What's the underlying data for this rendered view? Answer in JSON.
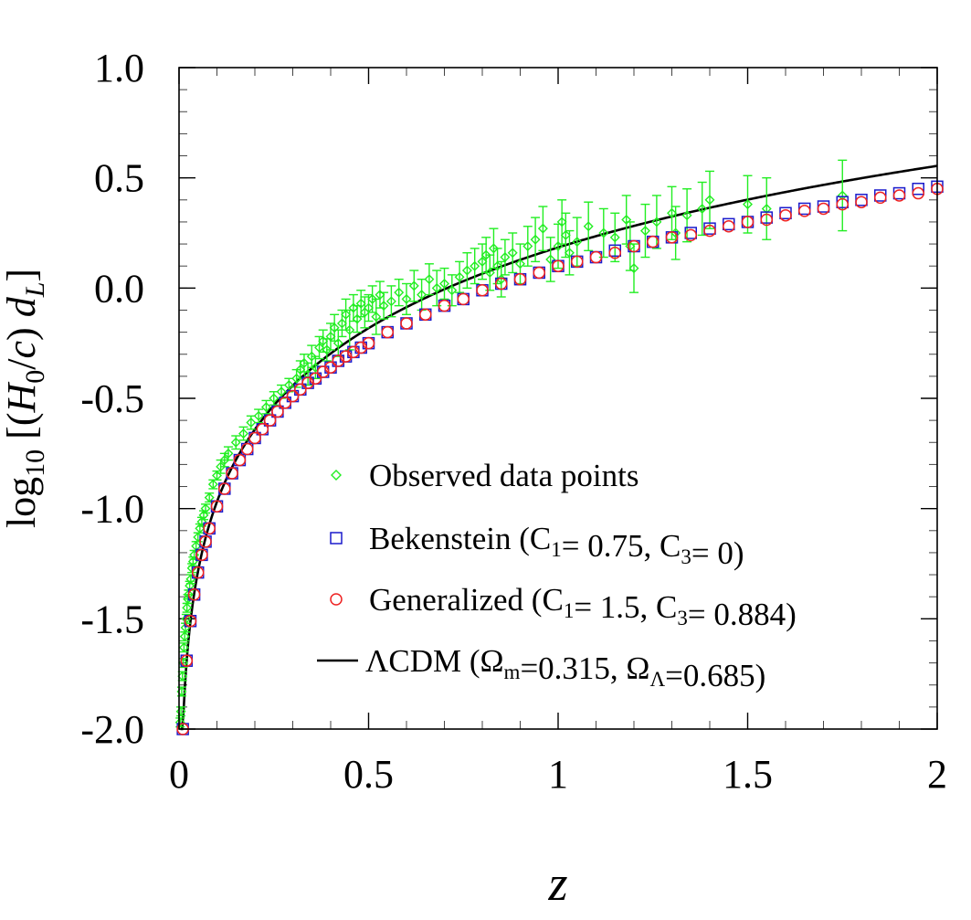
{
  "chart_data": {
    "type": "scatter",
    "title": "",
    "xlabel": "z",
    "ylabel": {
      "prefix": "log",
      "sub": "10",
      "open": " [(",
      "H": "H",
      "Hsub": "0",
      "mid": "/",
      "c": "c",
      "close1": ") ",
      "d": "d",
      "dsub": "L",
      "close2": "]"
    },
    "xlim": [
      0,
      2
    ],
    "ylim": [
      -2,
      1
    ],
    "xticks": [
      0,
      0.5,
      1,
      1.5,
      2
    ],
    "xtick_labels": [
      "0",
      "0.5",
      "1",
      "1.5",
      "2"
    ],
    "yticks": [
      1,
      0.5,
      0,
      -0.5,
      -1,
      -1.5,
      -2
    ],
    "ytick_labels": [
      "1.0",
      "0.5",
      "0.0",
      "-0.5",
      "-1.0",
      "-1.5",
      "-2.0"
    ],
    "legend": {
      "placement": "lower-right",
      "entries": [
        {
          "id": "observed",
          "marker": "diamond",
          "color": "#22ee22",
          "parts": [
            {
              "t": "Observed data points"
            }
          ]
        },
        {
          "id": "bekenstein",
          "marker": "square",
          "color": "#1a1acc",
          "parts": [
            {
              "t": "Bekenstein   (C"
            },
            {
              "t": "1",
              "sub": true
            },
            {
              "t": "= 0.75, C"
            },
            {
              "t": "3",
              "sub": true
            },
            {
              "t": "= 0)"
            }
          ]
        },
        {
          "id": "generalized",
          "marker": "circle",
          "color": "#ee2222",
          "parts": [
            {
              "t": "Generalized  (C"
            },
            {
              "t": "1",
              "sub": true
            },
            {
              "t": "= 1.5,   C"
            },
            {
              "t": "3",
              "sub": true
            },
            {
              "t": "= 0.884)"
            }
          ]
        },
        {
          "id": "lcdm",
          "marker": "line",
          "color": "#000000",
          "parts": [
            {
              "t": "ΛCDM  (Ω"
            },
            {
              "t": "m",
              "sub": true
            },
            {
              "t": "=0.315, Ω"
            },
            {
              "t": "Λ",
              "sub": true
            },
            {
              "t": "=0.685)"
            }
          ]
        }
      ]
    },
    "series": [
      {
        "name": "ΛCDM (Ωm=0.315, ΩΛ=0.685)",
        "type": "line",
        "color": "#000000",
        "model": {
          "H0c": "log10",
          "omega_m": 0.315,
          "omega_lambda": 0.685,
          "z_range": [
            0.0023,
            2.0
          ]
        }
      },
      {
        "name": "Bekenstein (C1= 0.75, C3= 0)",
        "marker": "square",
        "color": "#1a1acc",
        "z": [
          0.01,
          0.02,
          0.03,
          0.04,
          0.05,
          0.06,
          0.07,
          0.08,
          0.1,
          0.12,
          0.14,
          0.16,
          0.18,
          0.2,
          0.22,
          0.24,
          0.26,
          0.28,
          0.3,
          0.32,
          0.34,
          0.36,
          0.38,
          0.4,
          0.42,
          0.44,
          0.46,
          0.48,
          0.5,
          0.55,
          0.6,
          0.65,
          0.7,
          0.75,
          0.8,
          0.85,
          0.9,
          0.95,
          1.0,
          1.05,
          1.1,
          1.15,
          1.2,
          1.25,
          1.3,
          1.35,
          1.4,
          1.45,
          1.5,
          1.55,
          1.6,
          1.65,
          1.7,
          1.75,
          1.8,
          1.85,
          1.9,
          1.95,
          2.0
        ],
        "y": [
          -2.0,
          -1.69,
          -1.51,
          -1.39,
          -1.29,
          -1.21,
          -1.15,
          -1.09,
          -0.99,
          -0.91,
          -0.84,
          -0.78,
          -0.73,
          -0.68,
          -0.64,
          -0.6,
          -0.56,
          -0.52,
          -0.49,
          -0.46,
          -0.43,
          -0.41,
          -0.38,
          -0.36,
          -0.33,
          -0.31,
          -0.29,
          -0.27,
          -0.25,
          -0.2,
          -0.16,
          -0.12,
          -0.08,
          -0.05,
          -0.01,
          0.02,
          0.04,
          0.07,
          0.1,
          0.12,
          0.14,
          0.17,
          0.19,
          0.21,
          0.23,
          0.25,
          0.27,
          0.29,
          0.3,
          0.32,
          0.34,
          0.36,
          0.37,
          0.39,
          0.4,
          0.42,
          0.43,
          0.45,
          0.46
        ]
      },
      {
        "name": "Generalized (C1= 1.5, C3= 0.884)",
        "marker": "circle",
        "color": "#ee2222",
        "z": [
          0.01,
          0.02,
          0.03,
          0.04,
          0.05,
          0.06,
          0.07,
          0.08,
          0.1,
          0.12,
          0.14,
          0.16,
          0.18,
          0.2,
          0.22,
          0.24,
          0.26,
          0.28,
          0.3,
          0.32,
          0.34,
          0.36,
          0.38,
          0.4,
          0.42,
          0.44,
          0.46,
          0.48,
          0.5,
          0.55,
          0.6,
          0.65,
          0.7,
          0.75,
          0.8,
          0.85,
          0.9,
          0.95,
          1.0,
          1.05,
          1.1,
          1.15,
          1.2,
          1.25,
          1.3,
          1.35,
          1.4,
          1.45,
          1.5,
          1.55,
          1.6,
          1.65,
          1.7,
          1.75,
          1.8,
          1.85,
          1.9,
          1.95,
          2.0
        ],
        "y": [
          -2.0,
          -1.69,
          -1.51,
          -1.39,
          -1.29,
          -1.21,
          -1.15,
          -1.09,
          -0.99,
          -0.91,
          -0.84,
          -0.78,
          -0.73,
          -0.68,
          -0.64,
          -0.6,
          -0.56,
          -0.52,
          -0.49,
          -0.46,
          -0.43,
          -0.41,
          -0.38,
          -0.36,
          -0.33,
          -0.31,
          -0.29,
          -0.27,
          -0.25,
          -0.2,
          -0.16,
          -0.12,
          -0.08,
          -0.05,
          -0.01,
          0.02,
          0.04,
          0.07,
          0.1,
          0.12,
          0.14,
          0.16,
          0.19,
          0.21,
          0.23,
          0.24,
          0.26,
          0.28,
          0.3,
          0.31,
          0.33,
          0.35,
          0.36,
          0.38,
          0.39,
          0.41,
          0.42,
          0.43,
          0.45
        ]
      },
      {
        "name": "Observed data points",
        "marker": "diamond",
        "color": "#22ee22",
        "z": [
          0.003,
          0.005,
          0.007,
          0.009,
          0.011,
          0.013,
          0.015,
          0.017,
          0.019,
          0.021,
          0.023,
          0.025,
          0.028,
          0.031,
          0.034,
          0.037,
          0.04,
          0.045,
          0.05,
          0.055,
          0.06,
          0.065,
          0.07,
          0.08,
          0.09,
          0.1,
          0.11,
          0.12,
          0.13,
          0.15,
          0.17,
          0.19,
          0.21,
          0.23,
          0.25,
          0.27,
          0.29,
          0.31,
          0.32,
          0.33,
          0.34,
          0.35,
          0.36,
          0.37,
          0.38,
          0.39,
          0.4,
          0.41,
          0.42,
          0.43,
          0.44,
          0.45,
          0.46,
          0.47,
          0.48,
          0.49,
          0.5,
          0.51,
          0.52,
          0.53,
          0.54,
          0.56,
          0.58,
          0.6,
          0.62,
          0.64,
          0.66,
          0.68,
          0.7,
          0.72,
          0.74,
          0.76,
          0.78,
          0.8,
          0.81,
          0.82,
          0.83,
          0.84,
          0.85,
          0.86,
          0.88,
          0.9,
          0.92,
          0.94,
          0.96,
          0.98,
          1.0,
          1.01,
          1.02,
          1.03,
          1.05,
          1.08,
          1.12,
          1.15,
          1.18,
          1.19,
          1.2,
          1.23,
          1.26,
          1.3,
          1.31,
          1.34,
          1.38,
          1.4,
          1.5,
          1.55,
          1.75
        ],
        "y": [
          -1.97,
          -1.92,
          -1.83,
          -1.76,
          -1.7,
          -1.63,
          -1.58,
          -1.54,
          -1.5,
          -1.45,
          -1.41,
          -1.39,
          -1.35,
          -1.32,
          -1.27,
          -1.24,
          -1.21,
          -1.17,
          -1.13,
          -1.09,
          -1.06,
          -1.03,
          -1.0,
          -0.95,
          -0.89,
          -0.85,
          -0.81,
          -0.78,
          -0.75,
          -0.7,
          -0.66,
          -0.61,
          -0.58,
          -0.54,
          -0.5,
          -0.47,
          -0.44,
          -0.41,
          -0.37,
          -0.34,
          -0.39,
          -0.31,
          -0.36,
          -0.27,
          -0.24,
          -0.28,
          -0.22,
          -0.18,
          -0.25,
          -0.16,
          -0.12,
          -0.19,
          -0.09,
          -0.14,
          -0.07,
          -0.11,
          -0.09,
          -0.05,
          -0.13,
          -0.03,
          -0.08,
          -0.06,
          -0.02,
          -0.05,
          0.01,
          -0.03,
          0.04,
          0.0,
          0.02,
          -0.01,
          0.05,
          0.08,
          0.1,
          0.12,
          0.15,
          0.07,
          0.18,
          0.1,
          0.04,
          0.14,
          0.16,
          0.11,
          0.19,
          0.22,
          0.27,
          0.13,
          0.19,
          0.3,
          0.24,
          0.16,
          0.21,
          0.28,
          0.25,
          0.23,
          0.31,
          0.19,
          0.09,
          0.26,
          0.3,
          0.34,
          0.25,
          0.33,
          0.36,
          0.4,
          0.38,
          0.36,
          0.42
        ],
        "yerr": [
          0.02,
          0.02,
          0.02,
          0.02,
          0.02,
          0.02,
          0.02,
          0.02,
          0.02,
          0.02,
          0.02,
          0.02,
          0.02,
          0.02,
          0.02,
          0.02,
          0.02,
          0.02,
          0.02,
          0.02,
          0.02,
          0.02,
          0.02,
          0.02,
          0.02,
          0.02,
          0.03,
          0.03,
          0.03,
          0.03,
          0.03,
          0.03,
          0.03,
          0.03,
          0.03,
          0.03,
          0.03,
          0.04,
          0.04,
          0.04,
          0.05,
          0.05,
          0.05,
          0.05,
          0.05,
          0.05,
          0.06,
          0.06,
          0.06,
          0.06,
          0.07,
          0.09,
          0.06,
          0.06,
          0.06,
          0.07,
          0.06,
          0.06,
          0.08,
          0.06,
          0.06,
          0.07,
          0.06,
          0.07,
          0.07,
          0.07,
          0.07,
          0.08,
          0.07,
          0.07,
          0.07,
          0.08,
          0.08,
          0.08,
          0.08,
          0.08,
          0.09,
          0.08,
          0.08,
          0.08,
          0.09,
          0.09,
          0.09,
          0.1,
          0.1,
          0.1,
          0.1,
          0.1,
          0.1,
          0.1,
          0.11,
          0.11,
          0.11,
          0.11,
          0.11,
          0.11,
          0.11,
          0.12,
          0.12,
          0.12,
          0.12,
          0.12,
          0.12,
          0.13,
          0.13,
          0.14,
          0.16
        ]
      }
    ]
  }
}
